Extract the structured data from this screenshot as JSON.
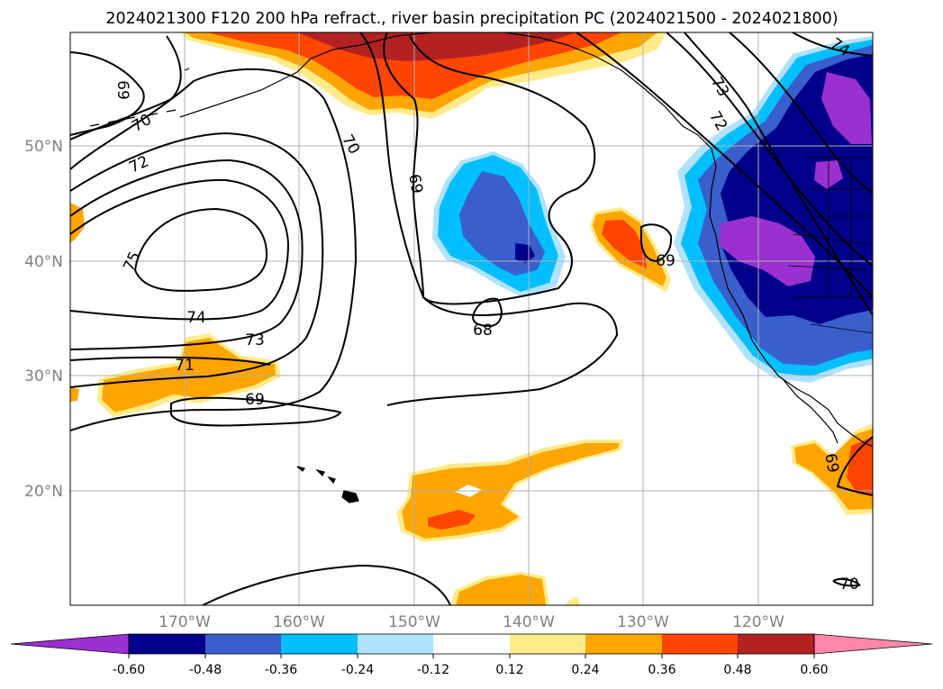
{
  "title": "2024021300 F120 200 hPa refract., river basin precipitation PC (2024021500 - 2024021800)",
  "map": {
    "lat_labels": [
      "50°N",
      "40°N",
      "30°N",
      "20°N"
    ],
    "lon_labels": [
      "170°W",
      "160°W",
      "150°W",
      "140°W",
      "130°W",
      "120°W"
    ],
    "contour_color": "#000000",
    "grid_color": "#b0b0b0",
    "contour_labels": [
      "69",
      "70",
      "72",
      "75",
      "74",
      "73",
      "71",
      "69",
      "70",
      "69",
      "68",
      "69",
      "73",
      "72",
      "74",
      "69",
      "70"
    ],
    "features": [
      "coastline-north-america",
      "alaska-coast",
      "hawaii-islands",
      "baja-california"
    ]
  },
  "colorbar": {
    "tick_labels": [
      "-0.60",
      "-0.48",
      "-0.36",
      "-0.24",
      "-0.12",
      "0.12",
      "0.24",
      "0.36",
      "0.48",
      "0.60"
    ],
    "colors": [
      "#9b30d0",
      "#00008b",
      "#3a5fcd",
      "#00bfff",
      "#b0e2ff",
      "#ffffff",
      "#ffeb8a",
      "#ffa500",
      "#ff4500",
      "#b22222",
      "#ff88aa"
    ],
    "extend": "both"
  }
}
